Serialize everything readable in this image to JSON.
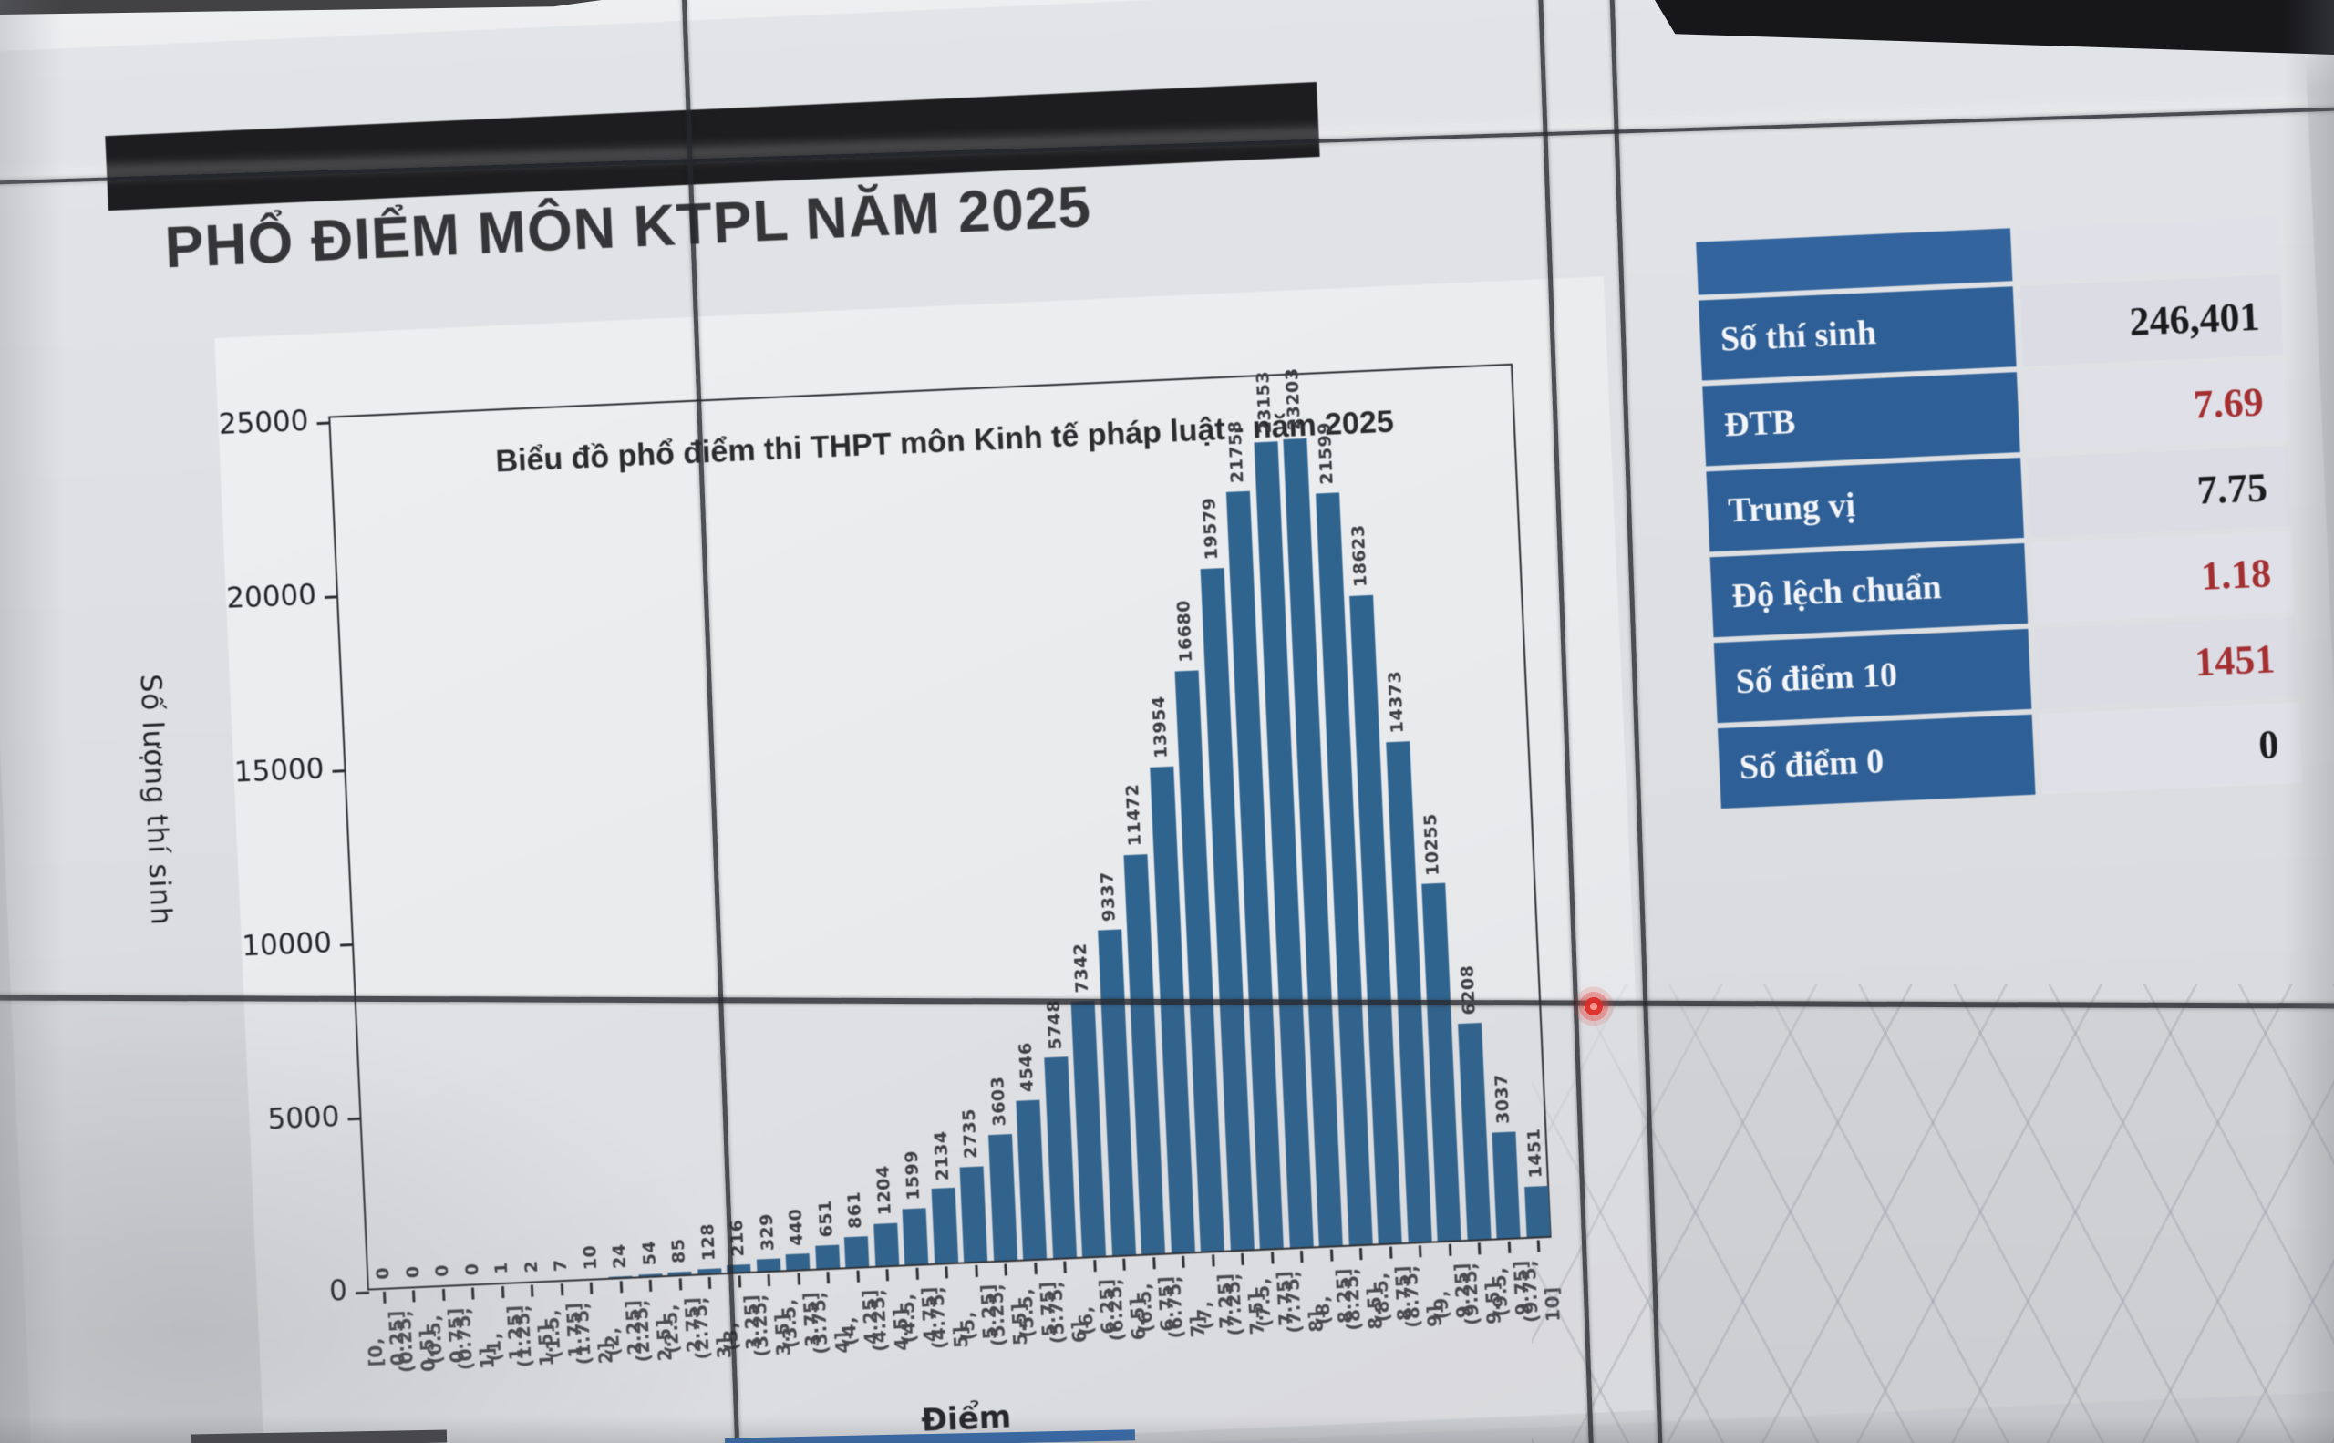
{
  "slide": {
    "title": "PHỔ ĐIỂM MÔN KTPL NĂM 2025"
  },
  "chart_data": {
    "type": "bar",
    "title": "Biểu đồ phổ điểm thi THPT môn Kinh tế pháp luật - năm 2025",
    "xlabel": "Điểm",
    "ylabel": "Số lượng thí sinh",
    "ylim": [
      0,
      25000
    ],
    "yticks": [
      0,
      5000,
      10000,
      15000,
      20000,
      25000
    ],
    "grid": false,
    "bar_color": "#2f648f",
    "categories": [
      "[0, 0.25]",
      "(0.25, 0.5]",
      "(0.5, 0.75]",
      "(0.75, 1]",
      "(1, 1.25]",
      "(1.25, 1.5]",
      "(1.5, 1.75]",
      "(1.75, 2]",
      "(2, 2.25]",
      "(2.25, 2.5]",
      "(2.5, 2.75]",
      "(2.75, 3]",
      "(3, 3.25]",
      "(3.25, 3.5]",
      "(3.5, 3.75]",
      "(3.75, 4]",
      "(4, 4.25]",
      "(4.25, 4.5]",
      "(4.5, 4.75]",
      "(4.75, 5]",
      "(5, 5.25]",
      "(5.25, 5.5]",
      "(5.5, 5.75]",
      "(5.75, 6]",
      "(6, 6.25]",
      "(6.25, 6.5]",
      "(6.5, 6.75]",
      "(6.75, 7]",
      "(7, 7.25]",
      "(7.25, 7.5]",
      "(7.5, 7.75]",
      "(7.75, 8]",
      "(8, 8.25]",
      "(8.25, 8.5]",
      "(8.5, 8.75]",
      "(8.75, 9]",
      "(9, 9.25]",
      "(9.25, 9.5]",
      "(9.5, 9.75]",
      "(9.75, 10]"
    ],
    "values": [
      0,
      0,
      0,
      0,
      1,
      2,
      7,
      10,
      24,
      54,
      85,
      128,
      216,
      329,
      440,
      651,
      861,
      1204,
      1599,
      2134,
      2735,
      3603,
      4546,
      5748,
      7342,
      9337,
      11472,
      13954,
      16680,
      19579,
      21758,
      23153,
      23203,
      21599,
      18623,
      14373,
      10255,
      6208,
      3037,
      1451
    ]
  },
  "stats_table": {
    "header_color": "#33649d",
    "rows": [
      {
        "label": "Số thí sinh",
        "value": "246,401",
        "value_color": "black"
      },
      {
        "label": "ĐTB",
        "value": "7.69",
        "value_color": "red"
      },
      {
        "label": "Trung vị",
        "value": "7.75",
        "value_color": "black"
      },
      {
        "label": "Độ lệch chuẩn",
        "value": "1.18",
        "value_color": "red"
      },
      {
        "label": "Số điểm 10",
        "value": "1451",
        "value_color": "red"
      },
      {
        "label": "Số điểm 0",
        "value": "0",
        "value_color": "black"
      }
    ]
  },
  "artifacts": {
    "laser_dot_color": "#de2c28"
  }
}
